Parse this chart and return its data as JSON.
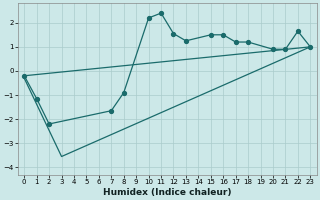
{
  "xlabel": "Humidex (Indice chaleur)",
  "bg_color": "#cce8e8",
  "grid_color": "#aacccc",
  "line_color": "#1a6b6b",
  "xlim": [
    -0.5,
    23.5
  ],
  "ylim": [
    -4.3,
    2.8
  ],
  "xticks": [
    0,
    1,
    2,
    3,
    4,
    5,
    6,
    7,
    8,
    9,
    10,
    11,
    12,
    13,
    14,
    15,
    16,
    17,
    18,
    19,
    20,
    21,
    22,
    23
  ],
  "yticks": [
    -4,
    -3,
    -2,
    -1,
    0,
    1,
    2
  ],
  "upper_line_x": [
    0,
    23
  ],
  "upper_line_y": [
    -0.2,
    1.0
  ],
  "lower_line_x": [
    0,
    3,
    23
  ],
  "lower_line_y": [
    -0.3,
    -3.55,
    1.0
  ],
  "curve_x": [
    0,
    1,
    2,
    7,
    8,
    10,
    11,
    12,
    13,
    15,
    16,
    17,
    18,
    20,
    21,
    22,
    23
  ],
  "curve_y": [
    -0.2,
    -1.15,
    -2.2,
    -1.65,
    -0.9,
    2.2,
    2.4,
    1.55,
    1.25,
    1.5,
    1.5,
    1.2,
    1.2,
    0.9,
    0.9,
    1.65,
    1.0
  ]
}
